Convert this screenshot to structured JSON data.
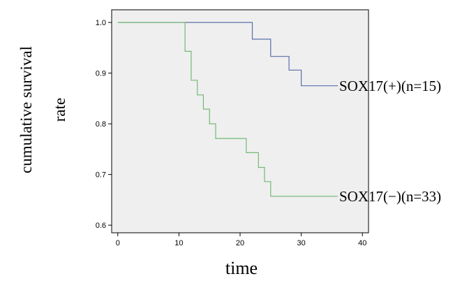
{
  "chart_data": {
    "type": "line",
    "title": "",
    "xlabel": "time",
    "ylabel_lines": [
      "cumulative survival",
      "rate"
    ],
    "xlim": [
      -1,
      41
    ],
    "ylim": [
      0.585,
      1.025
    ],
    "x_ticks": [
      "0",
      "10",
      "20",
      "30",
      "40"
    ],
    "y_ticks": [
      "0.6",
      "0.7",
      "0.8",
      "0.9",
      "1.0"
    ],
    "grid": false,
    "plot_background": "#efefef",
    "series": [
      {
        "name": "SOX17(+)(n=15)",
        "color": "#5b6fa8",
        "step_points": [
          [
            0,
            1.0
          ],
          [
            22,
            1.0
          ],
          [
            22,
            0.967
          ],
          [
            25,
            0.967
          ],
          [
            25,
            0.933
          ],
          [
            28,
            0.933
          ],
          [
            28,
            0.906
          ],
          [
            30,
            0.906
          ],
          [
            30,
            0.875
          ],
          [
            36,
            0.875
          ]
        ]
      },
      {
        "name": "SOX17(−)(n=33)",
        "color": "#74b874",
        "step_points": [
          [
            0,
            1.0
          ],
          [
            11,
            1.0
          ],
          [
            11,
            0.943
          ],
          [
            12,
            0.943
          ],
          [
            12,
            0.886
          ],
          [
            13,
            0.886
          ],
          [
            13,
            0.857
          ],
          [
            14,
            0.857
          ],
          [
            14,
            0.829
          ],
          [
            15,
            0.829
          ],
          [
            15,
            0.8
          ],
          [
            16,
            0.8
          ],
          [
            16,
            0.771
          ],
          [
            21,
            0.771
          ],
          [
            21,
            0.743
          ],
          [
            23,
            0.743
          ],
          [
            23,
            0.714
          ],
          [
            24,
            0.714
          ],
          [
            24,
            0.686
          ],
          [
            25,
            0.686
          ],
          [
            25,
            0.657
          ],
          [
            36,
            0.657
          ]
        ]
      }
    ]
  }
}
